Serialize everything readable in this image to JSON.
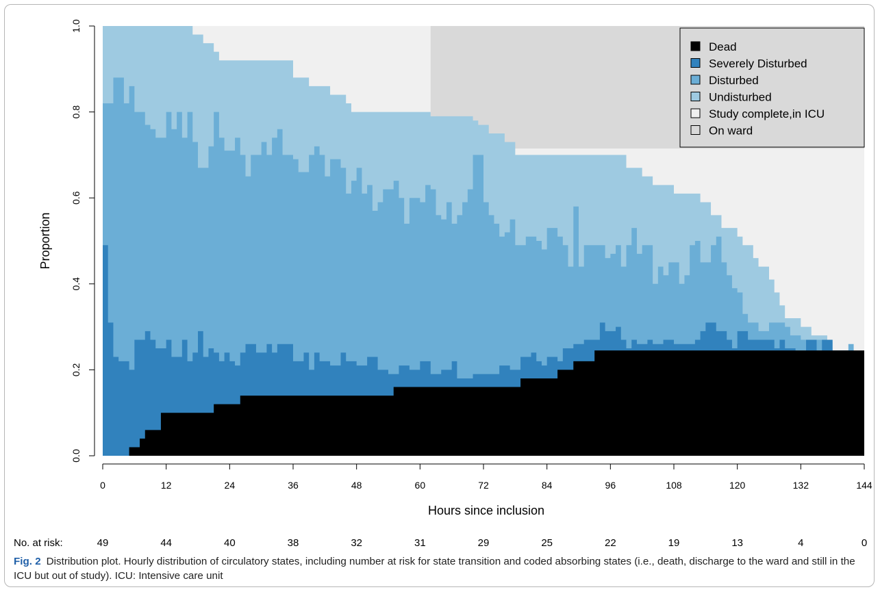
{
  "chart_data": {
    "type": "area",
    "subtype": "stacked state-distribution step plot",
    "xlabel": "Hours since inclusion",
    "ylabel": "Proportion",
    "xlim": [
      0,
      144
    ],
    "ylim": [
      0,
      1
    ],
    "x_ticks": [
      0,
      12,
      24,
      36,
      48,
      60,
      72,
      84,
      96,
      108,
      120,
      132,
      144
    ],
    "y_ticks": [
      "0.0",
      "0.2",
      "0.4",
      "0.6",
      "0.8",
      "1.0"
    ],
    "grid": false,
    "legend_placement": "top-right",
    "legend": [
      {
        "name": "Dead",
        "color": "#000000"
      },
      {
        "name": "Severely Disturbed",
        "color": "#3182bd"
      },
      {
        "name": "Disturbed",
        "color": "#6baed6"
      },
      {
        "name": "Undisturbed",
        "color": "#9ecae1"
      },
      {
        "name": "Study complete,in ICU",
        "color": "#f0f0f0"
      },
      {
        "name": "On ward",
        "color": "#d9d9d9"
      }
    ],
    "cumulative_boundaries": {
      "dead": [
        [
          0,
          0
        ],
        [
          5,
          0.02
        ],
        [
          7,
          0.04
        ],
        [
          8,
          0.06
        ],
        [
          11,
          0.1
        ],
        [
          21,
          0.12
        ],
        [
          26,
          0.14
        ],
        [
          55,
          0.16
        ],
        [
          79,
          0.18
        ],
        [
          86,
          0.2
        ],
        [
          89,
          0.22
        ],
        [
          93,
          0.245
        ],
        [
          144,
          0.245
        ]
      ],
      "severely_disturbed": [
        [
          0,
          0.49
        ],
        [
          1,
          0.31
        ],
        [
          2,
          0.23
        ],
        [
          3,
          0.22
        ],
        [
          5,
          0.2
        ],
        [
          6,
          0.27
        ],
        [
          8,
          0.29
        ],
        [
          9,
          0.27
        ],
        [
          10,
          0.25
        ],
        [
          12,
          0.27
        ],
        [
          13,
          0.23
        ],
        [
          15,
          0.27
        ],
        [
          16,
          0.22
        ],
        [
          17,
          0.24
        ],
        [
          18,
          0.29
        ],
        [
          19,
          0.23
        ],
        [
          20,
          0.25
        ],
        [
          21,
          0.24
        ],
        [
          22,
          0.22
        ],
        [
          23,
          0.24
        ],
        [
          24,
          0.22
        ],
        [
          25,
          0.21
        ],
        [
          26,
          0.24
        ],
        [
          27,
          0.26
        ],
        [
          28,
          0.26
        ],
        [
          29,
          0.24
        ],
        [
          31,
          0.26
        ],
        [
          32,
          0.24
        ],
        [
          33,
          0.26
        ],
        [
          35,
          0.26
        ],
        [
          36,
          0.22
        ],
        [
          38,
          0.24
        ],
        [
          39,
          0.2
        ],
        [
          40,
          0.24
        ],
        [
          41,
          0.22
        ],
        [
          43,
          0.21
        ],
        [
          45,
          0.24
        ],
        [
          46,
          0.22
        ],
        [
          48,
          0.21
        ],
        [
          50,
          0.23
        ],
        [
          52,
          0.2
        ],
        [
          54,
          0.19
        ],
        [
          56,
          0.21
        ],
        [
          58,
          0.2
        ],
        [
          60,
          0.22
        ],
        [
          62,
          0.19
        ],
        [
          64,
          0.2
        ],
        [
          66,
          0.22
        ],
        [
          67,
          0.18
        ],
        [
          70,
          0.19
        ],
        [
          72,
          0.19
        ],
        [
          75,
          0.21
        ],
        [
          77,
          0.2
        ],
        [
          79,
          0.23
        ],
        [
          81,
          0.24
        ],
        [
          82,
          0.22
        ],
        [
          83,
          0.21
        ],
        [
          84,
          0.23
        ],
        [
          86,
          0.22
        ],
        [
          87,
          0.25
        ],
        [
          89,
          0.26
        ],
        [
          91,
          0.27
        ],
        [
          94,
          0.31
        ],
        [
          95,
          0.29
        ],
        [
          97,
          0.3
        ],
        [
          98,
          0.27
        ],
        [
          99,
          0.25
        ],
        [
          100,
          0.27
        ],
        [
          101,
          0.26
        ],
        [
          103,
          0.27
        ],
        [
          104,
          0.26
        ],
        [
          106,
          0.27
        ],
        [
          108,
          0.26
        ],
        [
          110,
          0.26
        ],
        [
          112,
          0.27
        ],
        [
          113,
          0.29
        ],
        [
          114,
          0.31
        ],
        [
          116,
          0.29
        ],
        [
          118,
          0.27
        ],
        [
          119,
          0.25
        ],
        [
          120,
          0.29
        ],
        [
          122,
          0.27
        ],
        [
          125,
          0.27
        ],
        [
          127,
          0.25
        ],
        [
          128,
          0.27
        ],
        [
          129,
          0.25
        ],
        [
          131,
          0.24
        ],
        [
          133,
          0.27
        ],
        [
          135,
          0.245
        ],
        [
          136,
          0.27
        ],
        [
          138,
          0.245
        ],
        [
          140,
          0.245
        ],
        [
          141,
          0.245
        ]
      ],
      "disturbed": [
        [
          0,
          0.82
        ],
        [
          2,
          0.88
        ],
        [
          4,
          0.82
        ],
        [
          5,
          0.86
        ],
        [
          6,
          0.8
        ],
        [
          8,
          0.77
        ],
        [
          9,
          0.76
        ],
        [
          10,
          0.74
        ],
        [
          12,
          0.8
        ],
        [
          13,
          0.76
        ],
        [
          14,
          0.8
        ],
        [
          15,
          0.74
        ],
        [
          16,
          0.8
        ],
        [
          17,
          0.73
        ],
        [
          18,
          0.67
        ],
        [
          20,
          0.72
        ],
        [
          21,
          0.8
        ],
        [
          22,
          0.74
        ],
        [
          23,
          0.71
        ],
        [
          25,
          0.74
        ],
        [
          26,
          0.7
        ],
        [
          27,
          0.65
        ],
        [
          28,
          0.7
        ],
        [
          30,
          0.73
        ],
        [
          31,
          0.7
        ],
        [
          32,
          0.74
        ],
        [
          33,
          0.76
        ],
        [
          34,
          0.7
        ],
        [
          36,
          0.69
        ],
        [
          37,
          0.66
        ],
        [
          39,
          0.7
        ],
        [
          40,
          0.72
        ],
        [
          41,
          0.7
        ],
        [
          42,
          0.65
        ],
        [
          43,
          0.69
        ],
        [
          45,
          0.67
        ],
        [
          46,
          0.61
        ],
        [
          47,
          0.64
        ],
        [
          48,
          0.67
        ],
        [
          49,
          0.61
        ],
        [
          50,
          0.63
        ],
        [
          51,
          0.57
        ],
        [
          52,
          0.59
        ],
        [
          53,
          0.62
        ],
        [
          55,
          0.64
        ],
        [
          56,
          0.6
        ],
        [
          57,
          0.54
        ],
        [
          58,
          0.6
        ],
        [
          60,
          0.59
        ],
        [
          61,
          0.63
        ],
        [
          62,
          0.62
        ],
        [
          63,
          0.56
        ],
        [
          64,
          0.55
        ],
        [
          65,
          0.59
        ],
        [
          66,
          0.54
        ],
        [
          67,
          0.56
        ],
        [
          68,
          0.59
        ],
        [
          69,
          0.62
        ],
        [
          70,
          0.7
        ],
        [
          72,
          0.59
        ],
        [
          73,
          0.56
        ],
        [
          74,
          0.54
        ],
        [
          75,
          0.51
        ],
        [
          76,
          0.52
        ],
        [
          77,
          0.55
        ],
        [
          78,
          0.49
        ],
        [
          80,
          0.51
        ],
        [
          82,
          0.5
        ],
        [
          83,
          0.48
        ],
        [
          84,
          0.53
        ],
        [
          86,
          0.51
        ],
        [
          87,
          0.49
        ],
        [
          88,
          0.44
        ],
        [
          89,
          0.58
        ],
        [
          90,
          0.44
        ],
        [
          91,
          0.49
        ],
        [
          93,
          0.49
        ],
        [
          95,
          0.46
        ],
        [
          96,
          0.47
        ],
        [
          97,
          0.49
        ],
        [
          98,
          0.44
        ],
        [
          99,
          0.49
        ],
        [
          100,
          0.53
        ],
        [
          101,
          0.47
        ],
        [
          102,
          0.49
        ],
        [
          104,
          0.4
        ],
        [
          105,
          0.44
        ],
        [
          106,
          0.42
        ],
        [
          107,
          0.45
        ],
        [
          109,
          0.4
        ],
        [
          110,
          0.42
        ],
        [
          111,
          0.49
        ],
        [
          112,
          0.5
        ],
        [
          113,
          0.45
        ],
        [
          115,
          0.49
        ],
        [
          116,
          0.51
        ],
        [
          117,
          0.45
        ],
        [
          118,
          0.42
        ],
        [
          119,
          0.39
        ],
        [
          120,
          0.38
        ],
        [
          121,
          0.33
        ],
        [
          122,
          0.31
        ],
        [
          124,
          0.29
        ],
        [
          126,
          0.31
        ],
        [
          128,
          0.31
        ],
        [
          129,
          0.3
        ],
        [
          130,
          0.28
        ],
        [
          132,
          0.27
        ],
        [
          134,
          0.27
        ],
        [
          136,
          0.27
        ],
        [
          137,
          0.27
        ],
        [
          138,
          0.245
        ],
        [
          140,
          0.245
        ],
        [
          141,
          0.26
        ]
      ],
      "undisturbed": [
        [
          0,
          1.0
        ],
        [
          17,
          0.98
        ],
        [
          19,
          0.96
        ],
        [
          21,
          0.94
        ],
        [
          22,
          0.92
        ],
        [
          36,
          0.88
        ],
        [
          39,
          0.86
        ],
        [
          43,
          0.84
        ],
        [
          46,
          0.82
        ],
        [
          47,
          0.8
        ],
        [
          62,
          0.79
        ],
        [
          70,
          0.78
        ],
        [
          71,
          0.77
        ],
        [
          73,
          0.75
        ],
        [
          76,
          0.73
        ],
        [
          78,
          0.7
        ],
        [
          99,
          0.67
        ],
        [
          102,
          0.65
        ],
        [
          104,
          0.63
        ],
        [
          108,
          0.61
        ],
        [
          113,
          0.59
        ],
        [
          115,
          0.56
        ],
        [
          117,
          0.53
        ],
        [
          120,
          0.51
        ],
        [
          121,
          0.49
        ],
        [
          123,
          0.46
        ],
        [
          124,
          0.44
        ],
        [
          126,
          0.41
        ],
        [
          127,
          0.38
        ],
        [
          128,
          0.35
        ],
        [
          129,
          0.32
        ],
        [
          132,
          0.3
        ],
        [
          134,
          0.28
        ],
        [
          137,
          0.265
        ],
        [
          138,
          0.245
        ],
        [
          141,
          0.245
        ]
      ],
      "study_complete_in_icu": [
        [
          0,
          1.0
        ],
        [
          62,
          0.79
        ],
        [
          63,
          0.78
        ],
        [
          65,
          0.78
        ],
        [
          70,
          0.77
        ],
        [
          71,
          0.75
        ],
        [
          72,
          0.74
        ],
        [
          73,
          0.72
        ],
        [
          74,
          0.715
        ],
        [
          144,
          0.715
        ]
      ]
    },
    "numbers_at_risk": {
      "label": "No. at risk:",
      "hours": [
        0,
        12,
        24,
        36,
        48,
        60,
        72,
        84,
        96,
        108,
        120,
        132,
        144
      ],
      "values": [
        "49",
        "44",
        "40",
        "38",
        "32",
        "31",
        "29",
        "25",
        "22",
        "19",
        "13",
        "4",
        "0"
      ]
    }
  },
  "caption": {
    "label": "Fig. 2",
    "text": "Distribution plot. Hourly distribution of circulatory states, including number at risk for state transition and coded absorbing states (i.e., death, discharge to the ward and still in the ICU but out of study). ICU: Intensive care unit"
  }
}
